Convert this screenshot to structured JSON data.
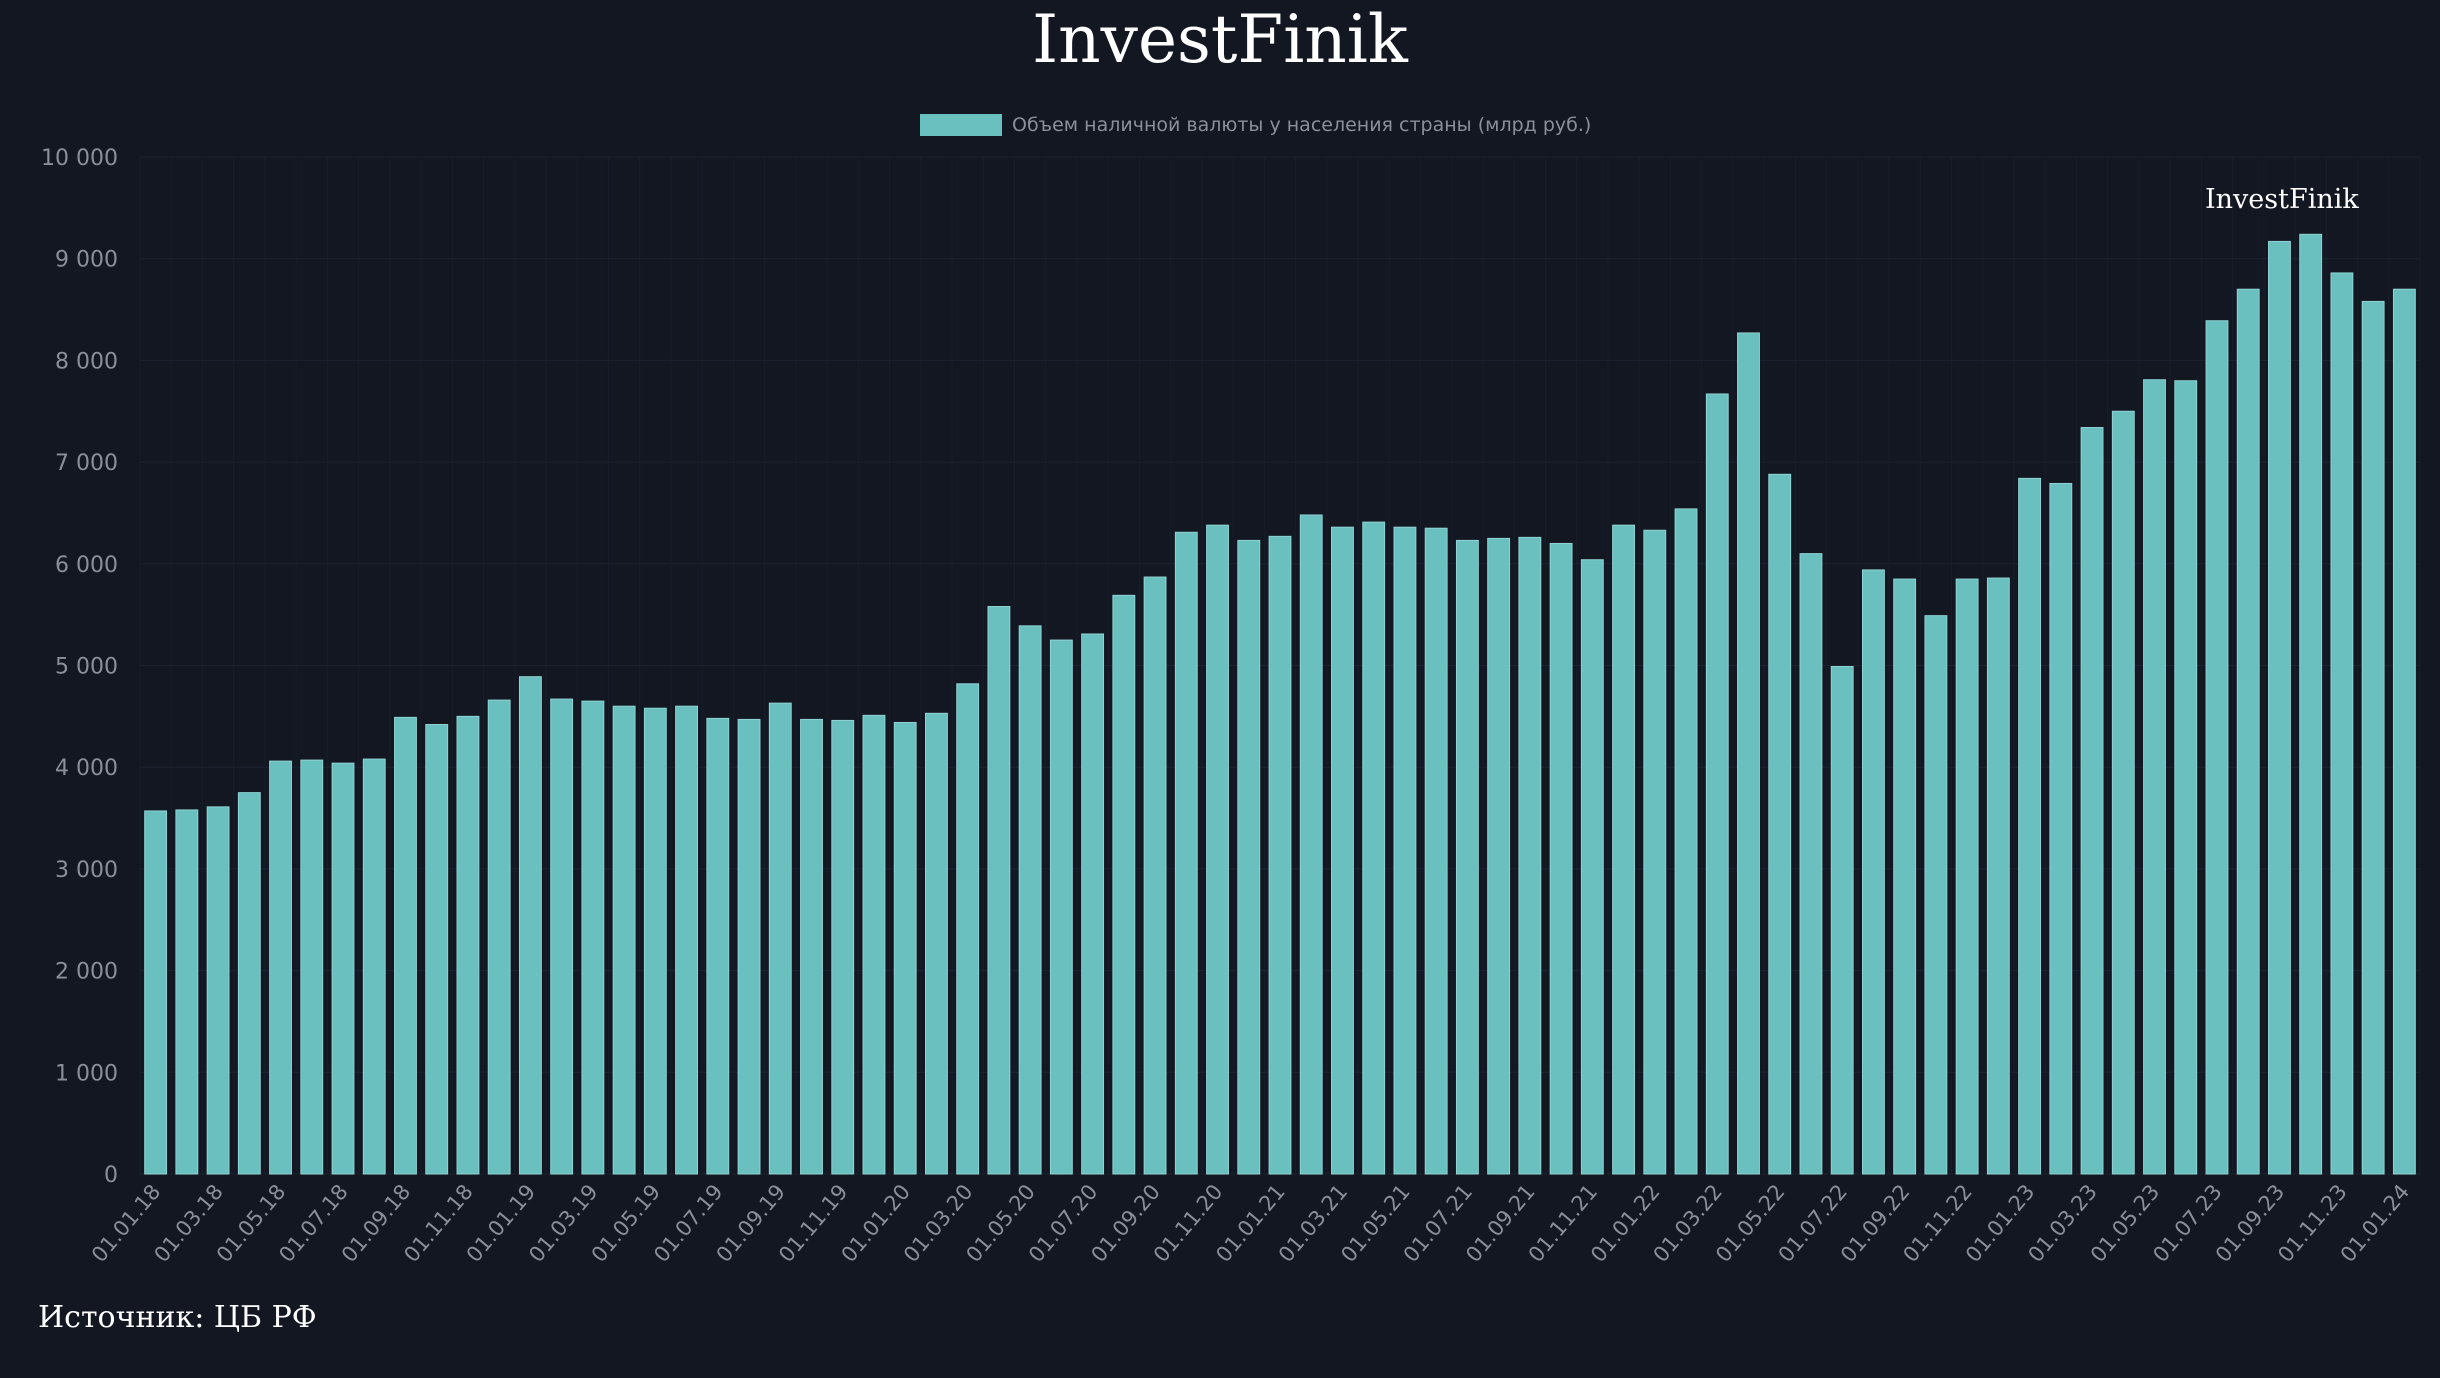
{
  "header": {
    "title": "InvestFinik"
  },
  "watermark": "InvestFinik",
  "source": "Источник: ЦБ РФ",
  "colors": {
    "bar": "#6abfbf",
    "background": "#131722",
    "grid": "#1d2230"
  },
  "chart_data": {
    "type": "bar",
    "title": "InvestFinik",
    "xlabel": "",
    "ylabel": "",
    "ylim": [
      0,
      10000
    ],
    "yticks": [
      0,
      1000,
      2000,
      3000,
      4000,
      5000,
      6000,
      7000,
      8000,
      9000,
      10000
    ],
    "ytick_labels": [
      "0",
      "1 000",
      "2 000",
      "3 000",
      "4 000",
      "5 000",
      "6 000",
      "7 000",
      "8 000",
      "9 000",
      "10 000"
    ],
    "legend": {
      "label": "Объем наличной валюты у населения страны (млрд руб.)",
      "position": "top"
    },
    "categories": [
      "01.01.18",
      "01.02.18",
      "01.03.18",
      "01.04.18",
      "01.05.18",
      "01.06.18",
      "01.07.18",
      "01.08.18",
      "01.09.18",
      "01.10.18",
      "01.11.18",
      "01.12.18",
      "01.01.19",
      "01.02.19",
      "01.03.19",
      "01.04.19",
      "01.05.19",
      "01.06.19",
      "01.07.19",
      "01.08.19",
      "01.09.19",
      "01.10.19",
      "01.11.19",
      "01.12.19",
      "01.01.20",
      "01.02.20",
      "01.03.20",
      "01.04.20",
      "01.05.20",
      "01.06.20",
      "01.07.20",
      "01.08.20",
      "01.09.20",
      "01.10.20",
      "01.11.20",
      "01.12.20",
      "01.01.21",
      "01.02.21",
      "01.03.21",
      "01.04.21",
      "01.05.21",
      "01.06.21",
      "01.07.21",
      "01.08.21",
      "01.09.21",
      "01.10.21",
      "01.11.21",
      "01.12.21",
      "01.01.22",
      "01.02.22",
      "01.03.22",
      "01.04.22",
      "01.05.22",
      "01.06.22",
      "01.07.22",
      "01.08.22",
      "01.09.22",
      "01.10.22",
      "01.11.22",
      "01.12.22",
      "01.01.23",
      "01.02.23",
      "01.03.23",
      "01.04.23",
      "01.05.23",
      "01.06.23",
      "01.07.23",
      "01.08.23",
      "01.09.23",
      "01.10.23",
      "01.11.23",
      "01.12.23",
      "01.01.24"
    ],
    "series": [
      {
        "name": "Объем наличной валюты у населения страны (млрд руб.)",
        "values": [
          3570,
          3580,
          3610,
          3750,
          4060,
          4070,
          4040,
          4080,
          4490,
          4420,
          4500,
          4660,
          4890,
          4670,
          4650,
          4600,
          4580,
          4600,
          4480,
          4470,
          4630,
          4470,
          4460,
          4510,
          4440,
          4530,
          4820,
          5580,
          5390,
          5250,
          5310,
          5690,
          5870,
          6310,
          6380,
          6230,
          6270,
          6480,
          6360,
          6410,
          6360,
          6350,
          6230,
          6250,
          6260,
          6200,
          6040,
          6380,
          6330,
          6540,
          7670,
          8270,
          6880,
          6100,
          4990,
          5940,
          5850,
          5490,
          5850,
          5860,
          6840,
          6790,
          7340,
          7500,
          7810,
          7800,
          8390,
          8700,
          9170,
          9240,
          8860,
          8580,
          8700
        ]
      }
    ],
    "xtick_labels": [
      "01.01.18",
      "01.03.18",
      "01.05.18",
      "01.07.18",
      "01.09.18",
      "01.11.18",
      "01.01.19",
      "01.03.19",
      "01.05.19",
      "01.07.19",
      "01.09.19",
      "01.11.19",
      "01.01.20",
      "01.03.20",
      "01.05.20",
      "01.07.20",
      "01.09.20",
      "01.11.20",
      "01.01.21",
      "01.03.21",
      "01.05.21",
      "01.07.21",
      "01.09.21",
      "01.11.21",
      "01.01.22",
      "01.03.22",
      "01.05.22",
      "01.07.22",
      "01.09.22",
      "01.11.22",
      "01.01.23",
      "01.03.23",
      "01.05.23",
      "01.07.23",
      "01.09.23",
      "01.11.23",
      "01.01.24"
    ]
  }
}
